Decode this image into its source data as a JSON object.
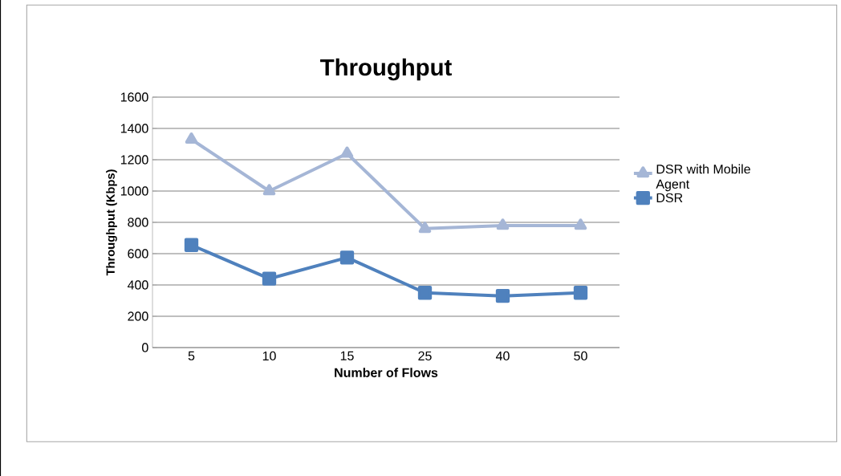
{
  "chart_data": {
    "type": "line",
    "title": "Throughput",
    "xlabel": "Number of Flows",
    "ylabel": "Throughput (Kbps)",
    "categories": [
      "5",
      "10",
      "15",
      "25",
      "40",
      "50"
    ],
    "series": [
      {
        "name": "DSR with Mobile Agent",
        "color": "#a5b6d6",
        "marker": "triangle",
        "values": [
          1330,
          1000,
          1240,
          760,
          780,
          780
        ]
      },
      {
        "name": "DSR",
        "color": "#4f81bd",
        "marker": "square",
        "values": [
          655,
          440,
          575,
          350,
          330,
          350
        ]
      }
    ],
    "ylim": [
      0,
      1600
    ],
    "yticks": [
      0,
      200,
      400,
      600,
      800,
      1000,
      1200,
      1400,
      1600
    ],
    "grid": "y",
    "legend": "right"
  }
}
